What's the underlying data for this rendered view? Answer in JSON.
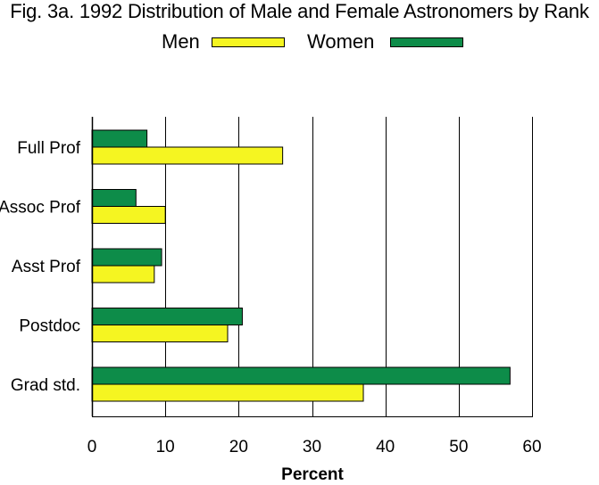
{
  "chart_data": {
    "type": "bar",
    "orientation": "horizontal",
    "title": "Fig. 3a. 1992 Distribution of Male and Female Astronomers by Rank",
    "xlabel": "Percent",
    "ylabel": "",
    "categories": [
      "Full Prof",
      "Assoc Prof",
      "Asst Prof",
      "Postdoc",
      "Grad std."
    ],
    "series": [
      {
        "name": "Men",
        "color": "#f5f521",
        "values": [
          26,
          10,
          8.5,
          18.5,
          37
        ]
      },
      {
        "name": "Women",
        "color": "#0d8c49",
        "values": [
          7.5,
          6,
          9.5,
          20.5,
          57
        ]
      }
    ],
    "xlim": [
      0,
      60
    ],
    "xticks": [
      "0",
      "10",
      "20",
      "30",
      "40",
      "50",
      "60"
    ],
    "grid": true,
    "legend_position": "top"
  }
}
